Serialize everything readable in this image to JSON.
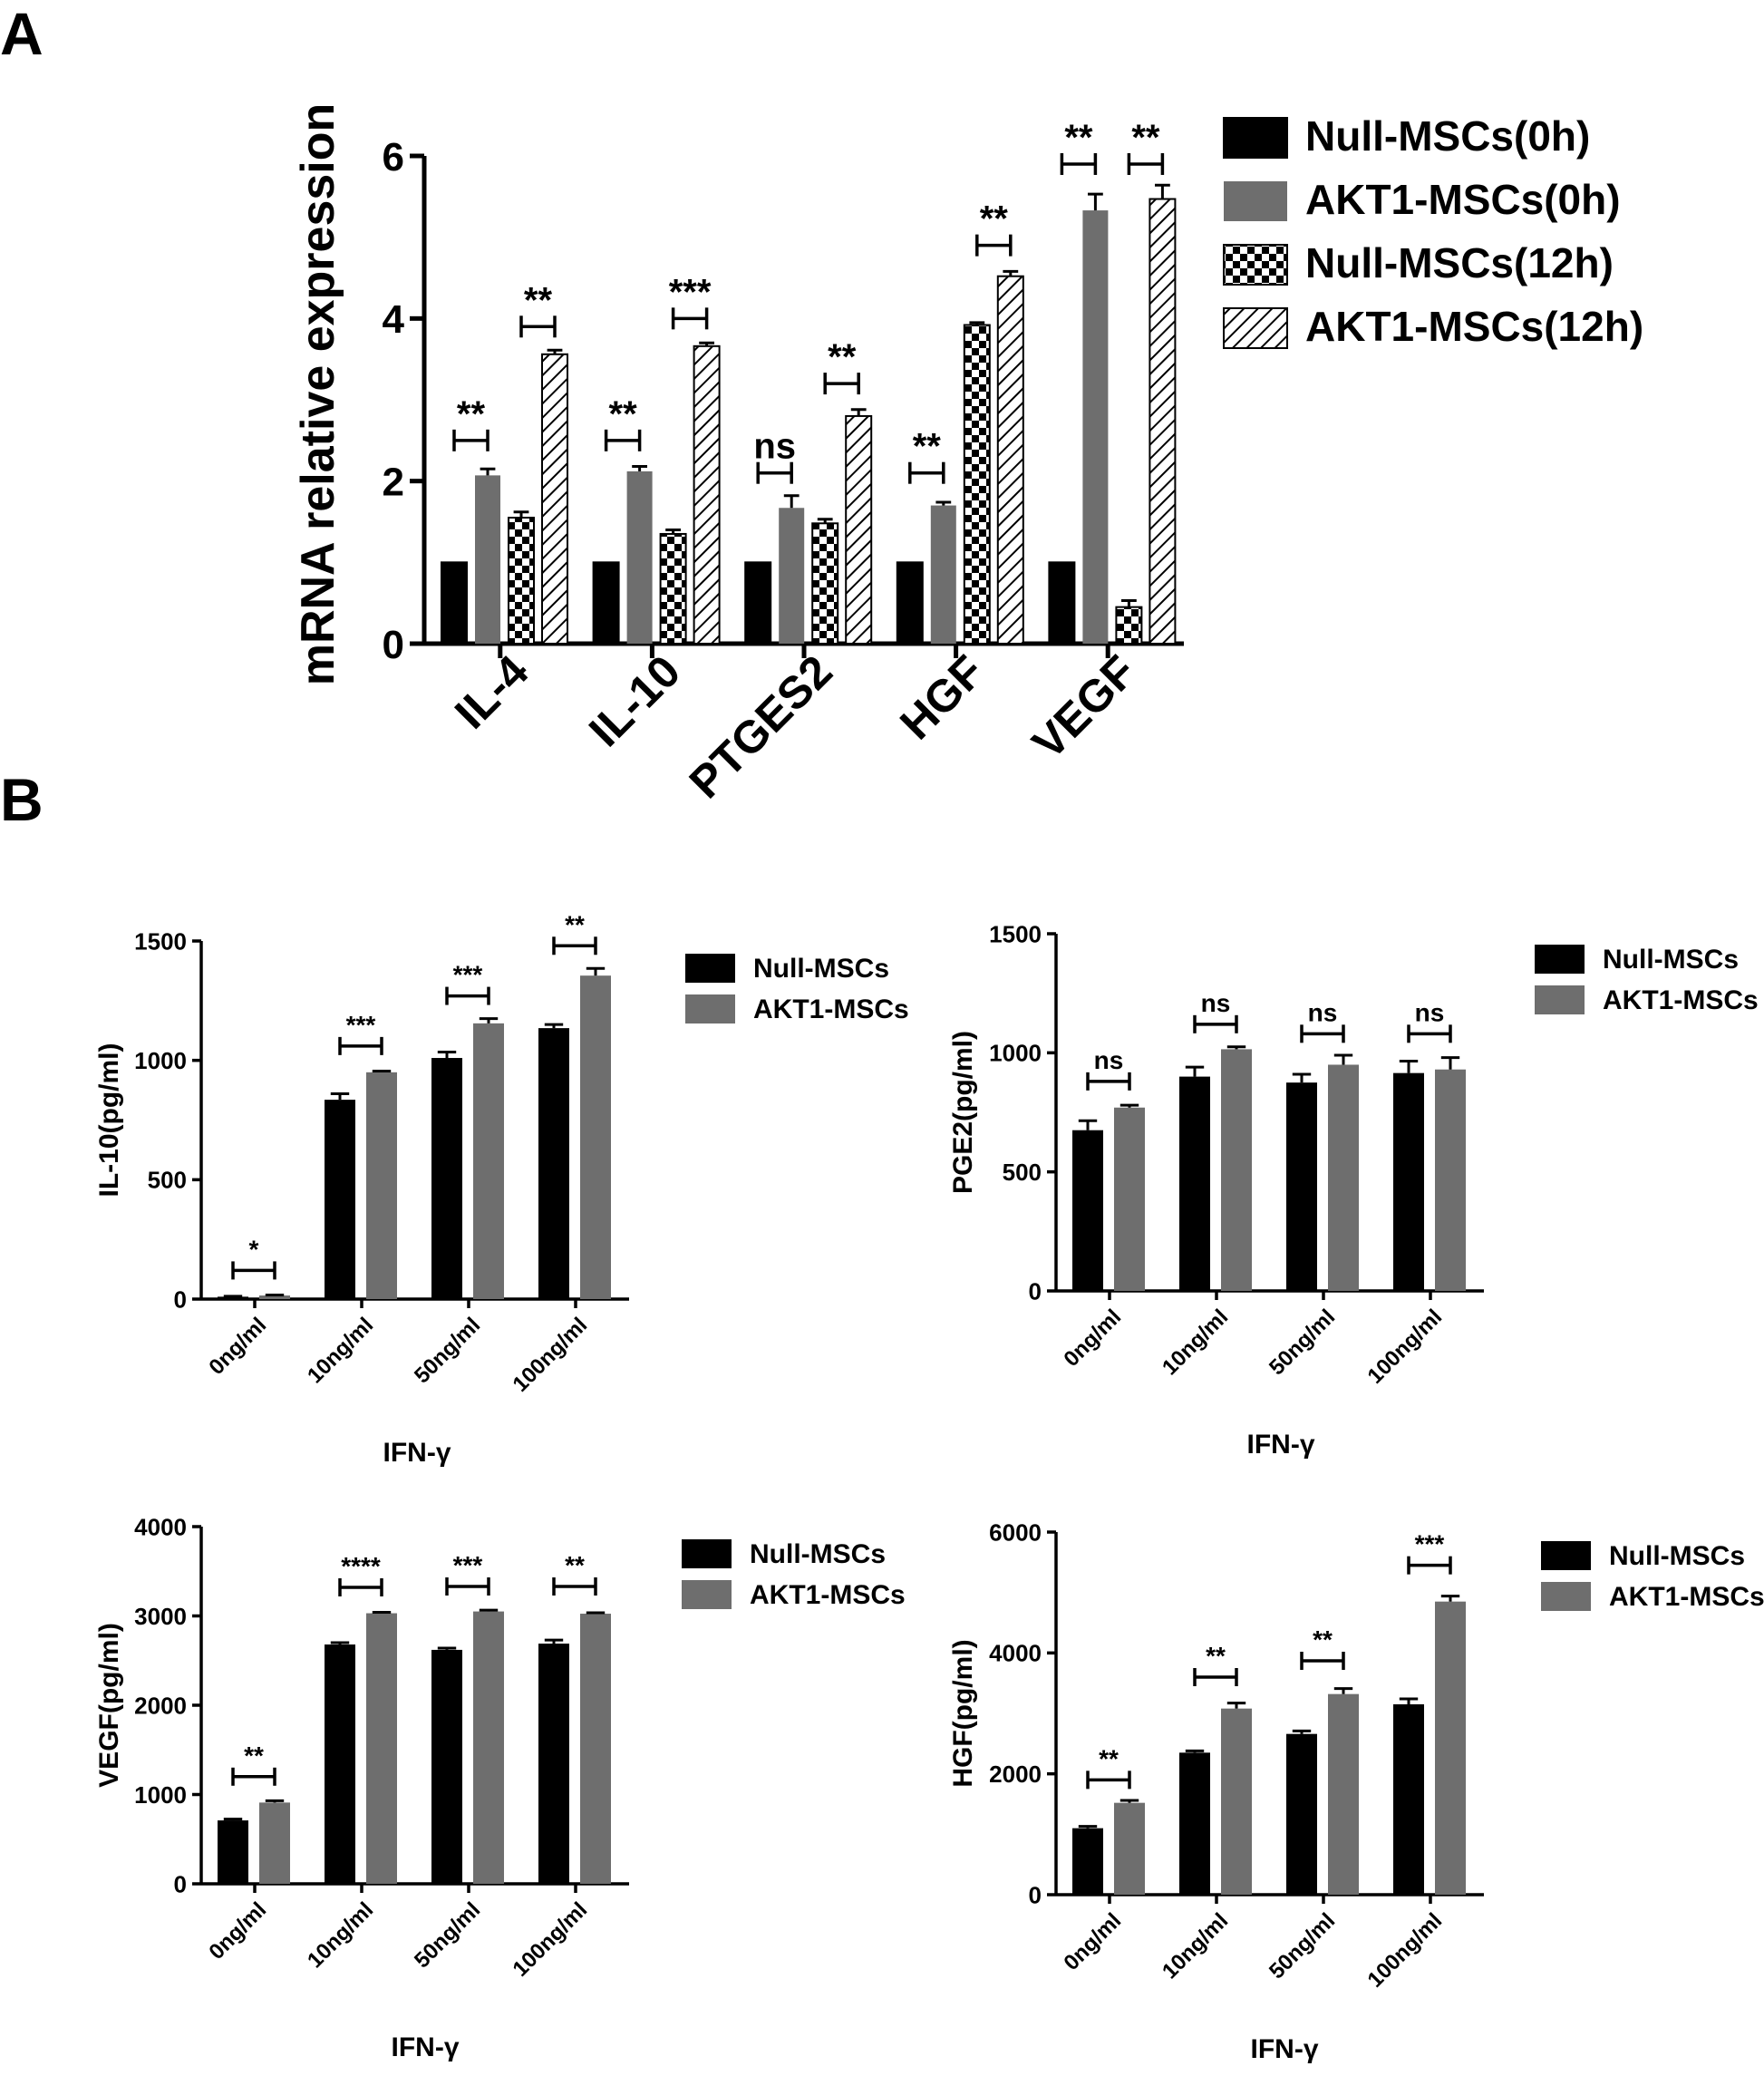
{
  "panel_labels": [
    "A",
    "B"
  ],
  "colors": {
    "null_0h": "#000000",
    "akt1_0h": "#6e6e6e",
    "axis": "#000000"
  },
  "chart_data": [
    {
      "id": "A",
      "type": "bar",
      "title": "",
      "xlabel": "",
      "ylabel": "mRNA relative expression",
      "ylim": [
        0,
        6
      ],
      "yticks": [
        "0",
        "2",
        "4",
        "6"
      ],
      "categories": [
        "IL-4",
        "IL-10",
        "PTGES2",
        "HGF",
        "VEGF"
      ],
      "legend_position": "top-right",
      "series": [
        {
          "name": "Null-MSCs(0h)",
          "pattern": "solid-black",
          "values": [
            1.0,
            1.0,
            1.0,
            1.0,
            1.0
          ],
          "errors": [
            0,
            0,
            0,
            0,
            0
          ]
        },
        {
          "name": "AKT1-MSCs(0h)",
          "pattern": "solid-gray",
          "values": [
            2.07,
            2.12,
            1.67,
            1.7,
            5.33
          ],
          "errors": [
            0.08,
            0.06,
            0.15,
            0.04,
            0.2
          ]
        },
        {
          "name": "Null-MSCs(12h)",
          "pattern": "checker",
          "values": [
            1.55,
            1.35,
            1.48,
            3.92,
            0.45
          ],
          "errors": [
            0.07,
            0.05,
            0.05,
            0.03,
            0.08
          ]
        },
        {
          "name": "AKT1-MSCs(12h)",
          "pattern": "hatch",
          "values": [
            3.56,
            3.66,
            2.8,
            4.52,
            5.47
          ],
          "errors": [
            0.05,
            0.04,
            0.08,
            0.06,
            0.17
          ]
        }
      ],
      "significance": [
        {
          "category": 0,
          "from_series": 0,
          "to_series": 1,
          "y": 2.5,
          "label": "**"
        },
        {
          "category": 0,
          "from_series": 2,
          "to_series": 3,
          "y": 3.9,
          "label": "**"
        },
        {
          "category": 1,
          "from_series": 0,
          "to_series": 1,
          "y": 2.5,
          "label": "**"
        },
        {
          "category": 1,
          "from_series": 2,
          "to_series": 3,
          "y": 4.0,
          "label": "***"
        },
        {
          "category": 2,
          "from_series": 0,
          "to_series": 1,
          "y": 2.1,
          "label": "ns"
        },
        {
          "category": 2,
          "from_series": 2,
          "to_series": 3,
          "y": 3.2,
          "label": "**"
        },
        {
          "category": 3,
          "from_series": 0,
          "to_series": 1,
          "y": 2.1,
          "label": "**"
        },
        {
          "category": 3,
          "from_series": 2,
          "to_series": 3,
          "y": 4.9,
          "label": "**"
        },
        {
          "category": 4,
          "from_series": 0,
          "to_series": 1,
          "y": 5.9,
          "label": "**"
        },
        {
          "category": 4,
          "from_series": 2,
          "to_series": 3,
          "y": 5.9,
          "label": "**"
        }
      ]
    },
    {
      "id": "B1",
      "type": "bar",
      "title": "",
      "xlabel": "IFN-γ",
      "ylabel": "IL-10(pg/ml)",
      "ylim": [
        0,
        1500
      ],
      "yticks": [
        "0",
        "500",
        "1000",
        "1500"
      ],
      "categories": [
        "0ng/ml",
        "10ng/ml",
        "50ng/ml",
        "100ng/ml"
      ],
      "legend_position": "top-right",
      "series": [
        {
          "name": "Null-MSCs",
          "values": [
            10,
            835,
            1010,
            1135
          ],
          "errors": [
            2,
            25,
            25,
            15
          ]
        },
        {
          "name": "AKT1-MSCs",
          "values": [
            15,
            950,
            1155,
            1355
          ],
          "errors": [
            2,
            5,
            20,
            30
          ]
        }
      ],
      "significance": [
        {
          "category": 0,
          "y": 120,
          "label": "*"
        },
        {
          "category": 1,
          "y": 1060,
          "label": "***"
        },
        {
          "category": 2,
          "y": 1270,
          "label": "***"
        },
        {
          "category": 3,
          "y": 1480,
          "label": "**"
        }
      ]
    },
    {
      "id": "B2",
      "type": "bar",
      "title": "",
      "xlabel": "IFN-γ",
      "ylabel": "PGE2(pg/ml)",
      "ylim": [
        0,
        1500
      ],
      "yticks": [
        "0",
        "500",
        "1000",
        "1500"
      ],
      "categories": [
        "0ng/ml",
        "10ng/ml",
        "50ng/ml",
        "100ng/ml"
      ],
      "legend_position": "top-right",
      "series": [
        {
          "name": "Null-MSCs",
          "values": [
            675,
            900,
            875,
            915
          ],
          "errors": [
            40,
            40,
            35,
            50
          ]
        },
        {
          "name": "AKT1-MSCs",
          "values": [
            770,
            1015,
            950,
            930
          ],
          "errors": [
            10,
            10,
            40,
            50
          ]
        }
      ],
      "significance": [
        {
          "category": 0,
          "y": 880,
          "label": "ns"
        },
        {
          "category": 1,
          "y": 1120,
          "label": "ns"
        },
        {
          "category": 2,
          "y": 1080,
          "label": "ns"
        },
        {
          "category": 3,
          "y": 1080,
          "label": "ns"
        }
      ]
    },
    {
      "id": "B3",
      "type": "bar",
      "title": "",
      "xlabel": "IFN-γ",
      "ylabel": "VEGF(pg/ml)",
      "ylim": [
        0,
        4000
      ],
      "yticks": [
        "0",
        "1000",
        "2000",
        "3000",
        "4000"
      ],
      "categories": [
        "0ng/ml",
        "10ng/ml",
        "50ng/ml",
        "100ng/ml"
      ],
      "legend_position": "top-right",
      "series": [
        {
          "name": "Null-MSCs",
          "values": [
            710,
            2680,
            2620,
            2690
          ],
          "errors": [
            15,
            20,
            20,
            40
          ]
        },
        {
          "name": "AKT1-MSCs",
          "values": [
            910,
            3030,
            3050,
            3025
          ],
          "errors": [
            20,
            10,
            15,
            10
          ]
        }
      ],
      "significance": [
        {
          "category": 0,
          "y": 1200,
          "label": "**"
        },
        {
          "category": 1,
          "y": 3320,
          "label": "****"
        },
        {
          "category": 2,
          "y": 3330,
          "label": "***"
        },
        {
          "category": 3,
          "y": 3330,
          "label": "**"
        }
      ]
    },
    {
      "id": "B4",
      "type": "bar",
      "title": "",
      "xlabel": "IFN-γ",
      "ylabel": "HGF(pg/ml)",
      "ylim": [
        0,
        6000
      ],
      "yticks": [
        "0",
        "2000",
        "4000",
        "6000"
      ],
      "categories": [
        "0ng/ml",
        "10ng/ml",
        "50ng/ml",
        "100ng/ml"
      ],
      "legend_position": "top-right",
      "series": [
        {
          "name": "Null-MSCs",
          "values": [
            1100,
            2350,
            2660,
            3150
          ],
          "errors": [
            30,
            30,
            50,
            90
          ]
        },
        {
          "name": "AKT1-MSCs",
          "values": [
            1520,
            3080,
            3320,
            4850
          ],
          "errors": [
            40,
            90,
            90,
            90
          ]
        }
      ],
      "significance": [
        {
          "category": 0,
          "y": 1900,
          "label": "**"
        },
        {
          "category": 1,
          "y": 3600,
          "label": "**"
        },
        {
          "category": 2,
          "y": 3870,
          "label": "**"
        },
        {
          "category": 3,
          "y": 5450,
          "label": "***"
        }
      ]
    }
  ]
}
